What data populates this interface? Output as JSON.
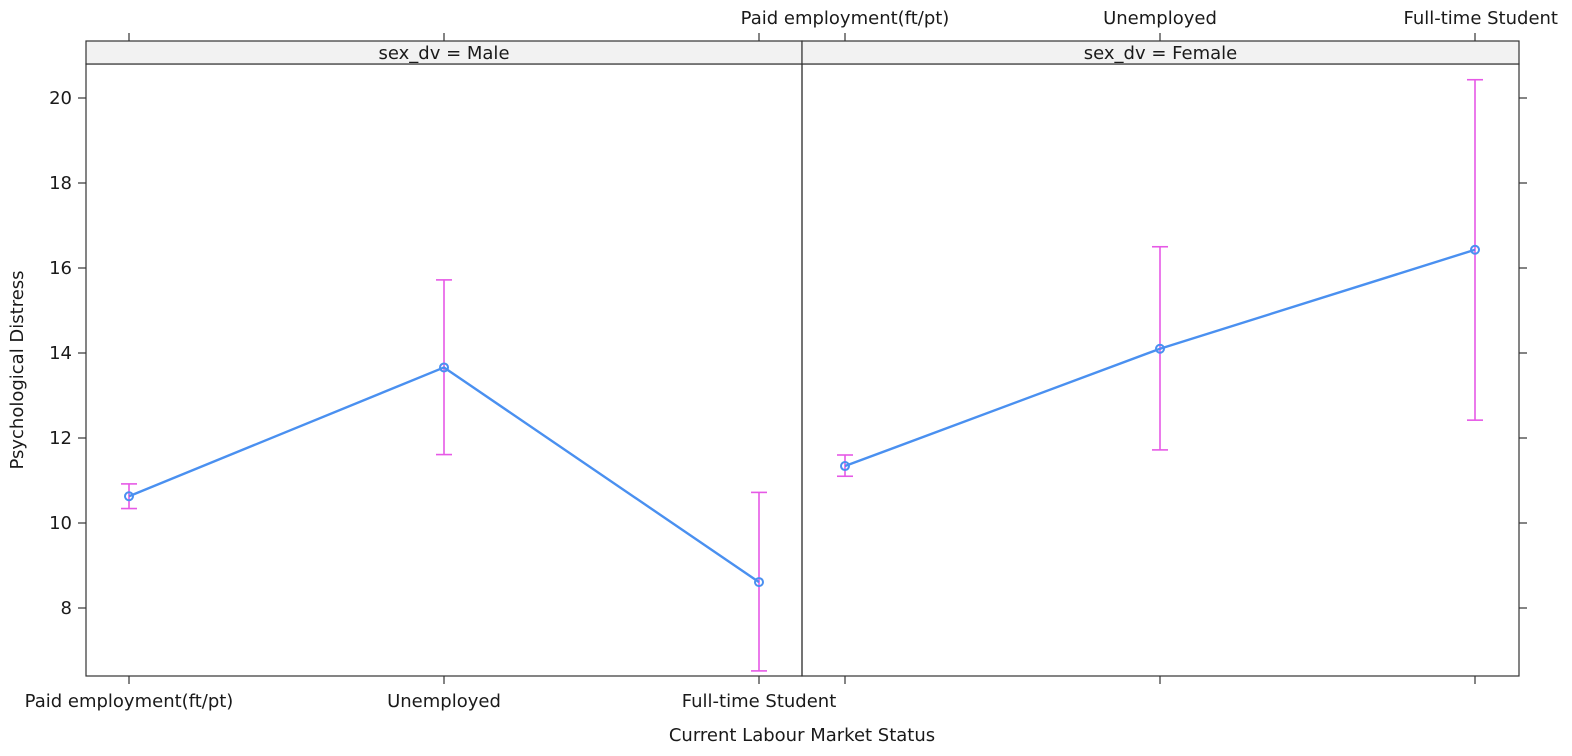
{
  "chart_data": {
    "type": "line",
    "xlabel": "Current Labour Market Status",
    "ylabel": "Psychological Distress",
    "categories": [
      "Paid employment(ft/pt)",
      "Unemployed",
      "Full-time Student"
    ],
    "ylim": [
      6.4,
      20.8
    ],
    "yticks": [
      8,
      10,
      12,
      14,
      16,
      18,
      20
    ],
    "grid": false,
    "colors": {
      "line": "#4a90f0",
      "errorbar": "#e659e6",
      "strip": "#f2f2f2",
      "frame": "#333333"
    },
    "panels": [
      {
        "strip": "sex_dv = Male",
        "values": [
          10.63,
          13.66,
          8.61
        ],
        "lower": [
          10.34,
          11.61,
          6.52
        ],
        "upper": [
          10.92,
          15.72,
          10.72
        ]
      },
      {
        "strip": "sex_dv = Female",
        "values": [
          11.34,
          14.1,
          16.43
        ],
        "lower": [
          11.1,
          11.72,
          12.42
        ],
        "upper": [
          11.6,
          16.5,
          20.43
        ]
      }
    ]
  }
}
